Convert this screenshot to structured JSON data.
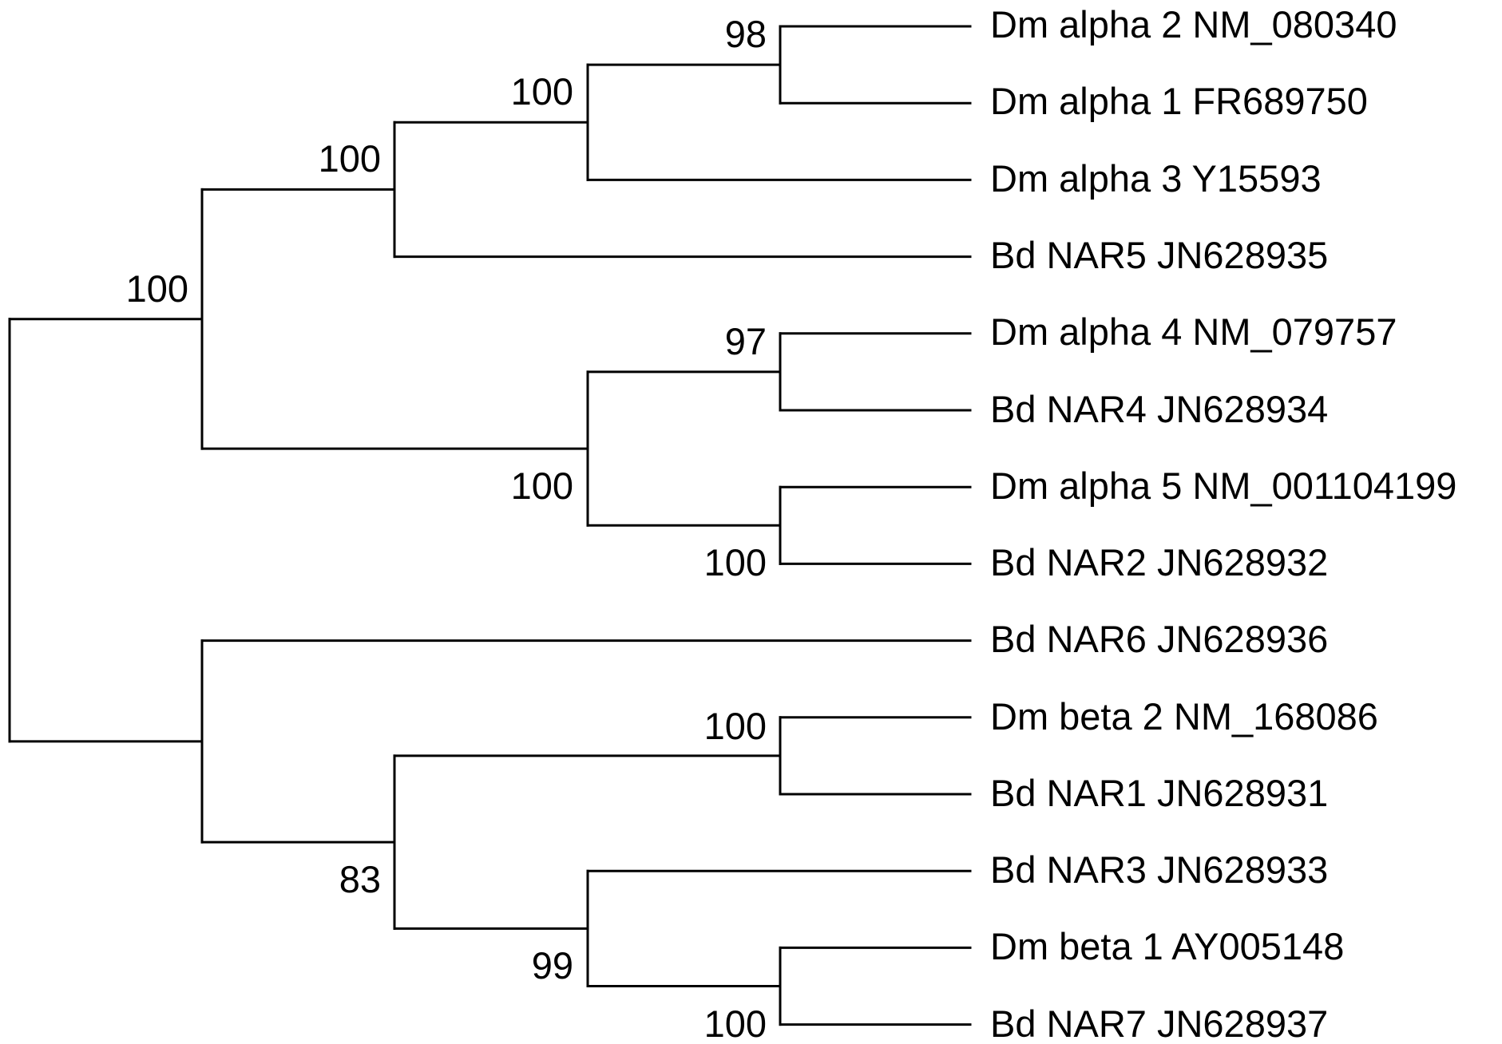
{
  "tree": {
    "leaves": [
      {
        "id": "t1",
        "label": "Dm alpha 2 NM_080340"
      },
      {
        "id": "t2",
        "label": "Dm alpha 1 FR689750"
      },
      {
        "id": "t3",
        "label": "Dm alpha 3 Y15593"
      },
      {
        "id": "t4",
        "label": "Bd NAR5 JN628935"
      },
      {
        "id": "t5",
        "label": "Dm alpha 4 NM_079757"
      },
      {
        "id": "t6",
        "label": "Bd NAR4 JN628934"
      },
      {
        "id": "t7",
        "label": "Dm alpha 5 NM_001104199"
      },
      {
        "id": "t8",
        "label": "Bd NAR2 JN628932"
      },
      {
        "id": "t9",
        "label": "Bd NAR6 JN628936"
      },
      {
        "id": "t10",
        "label": "Dm beta 2 NM_168086"
      },
      {
        "id": "t11",
        "label": "Bd NAR1 JN628931"
      },
      {
        "id": "t12",
        "label": "Bd NAR3 JN628933"
      },
      {
        "id": "t13",
        "label": "Dm beta 1 AY005148"
      },
      {
        "id": "t14",
        "label": "Bd NAR7 JN628937"
      }
    ],
    "clades": [
      {
        "id": "n1",
        "members": [
          "t1",
          "t2"
        ],
        "support": "98"
      },
      {
        "id": "n2",
        "members": [
          "n1",
          "t3"
        ],
        "support": "100"
      },
      {
        "id": "n3",
        "members": [
          "n2",
          "t4"
        ],
        "support": "100"
      },
      {
        "id": "n4",
        "members": [
          "t5",
          "t6"
        ],
        "support": "97"
      },
      {
        "id": "n5",
        "members": [
          "t7",
          "t8"
        ],
        "support": "100"
      },
      {
        "id": "n6",
        "members": [
          "n4",
          "n5"
        ],
        "support": "100"
      },
      {
        "id": "n7",
        "members": [
          "n3",
          "n6"
        ],
        "support": "100"
      },
      {
        "id": "n8",
        "members": [
          "t10",
          "t11"
        ],
        "support": "100"
      },
      {
        "id": "n9",
        "members": [
          "t13",
          "t14"
        ],
        "support": "100"
      },
      {
        "id": "n10",
        "members": [
          "t12",
          "n9"
        ],
        "support": "99"
      },
      {
        "id": "n11",
        "members": [
          "n8",
          "n10"
        ],
        "support": "83"
      },
      {
        "id": "n12",
        "members": [
          "t9",
          "n11"
        ],
        "support": ""
      },
      {
        "id": "root",
        "members": [
          "n7",
          "n12"
        ],
        "support": ""
      }
    ]
  }
}
